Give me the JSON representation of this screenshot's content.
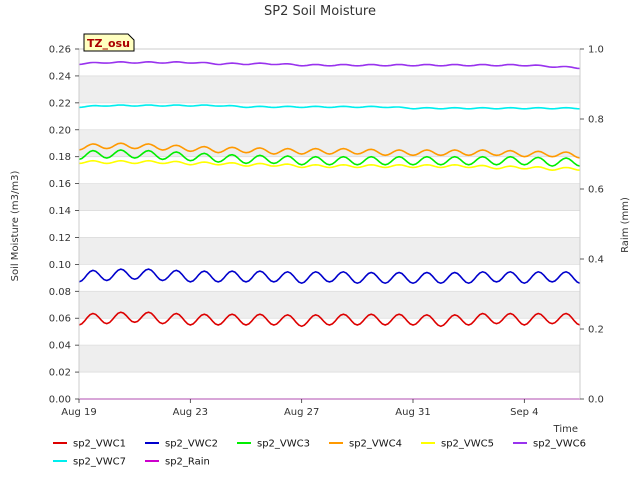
{
  "chart_data": {
    "type": "line",
    "title": "SP2 Soil Moisture",
    "xlabel": "Time",
    "ylabel": "Soil Moisture (m3/m3)",
    "y2label": "Raim (mm)",
    "badge": "TZ_osu",
    "xlim": [
      "2023-08-19",
      "2023-09-06"
    ],
    "ylim": [
      0,
      0.26
    ],
    "y2lim": [
      0,
      1.0
    ],
    "x_ticks": [
      "Aug 19",
      "Aug 23",
      "Aug 27",
      "Aug 31",
      "Sep 4"
    ],
    "x_tick_days": [
      0,
      4,
      8,
      12,
      16
    ],
    "y_ticks": [
      "0.00",
      "0.02",
      "0.04",
      "0.06",
      "0.08",
      "0.10",
      "0.12",
      "0.14",
      "0.16",
      "0.18",
      "0.20",
      "0.22",
      "0.24",
      "0.26"
    ],
    "y2_ticks": [
      "0.0",
      "0.2",
      "0.4",
      "0.6",
      "0.8",
      "1.0"
    ],
    "grid": "horizontal bands",
    "legend_position": "bottom",
    "colors": {
      "band": "#eeeeee",
      "badge_bg": "#ffffc0",
      "badge_text": "#aa0000"
    },
    "series": [
      {
        "name": "sp2_VWC1",
        "color": "#dd0000",
        "axis": "left",
        "x": [
          "2023-08-19",
          "2023-08-20",
          "2023-08-21",
          "2023-08-22",
          "2023-08-23",
          "2023-08-24",
          "2023-08-25",
          "2023-08-26",
          "2023-08-27",
          "2023-08-28",
          "2023-08-29",
          "2023-08-30",
          "2023-08-31",
          "2023-09-01",
          "2023-09-02",
          "2023-09-03",
          "2023-09-04",
          "2023-09-05",
          "2023-09-06"
        ],
        "values": [
          0.059,
          0.06,
          0.061,
          0.06,
          0.059,
          0.059,
          0.059,
          0.059,
          0.058,
          0.059,
          0.059,
          0.059,
          0.059,
          0.058,
          0.059,
          0.06,
          0.059,
          0.06,
          0.059
        ],
        "daily_amplitude": 0.004
      },
      {
        "name": "sp2_VWC2",
        "color": "#0000cc",
        "axis": "left",
        "x": [
          "2023-08-19",
          "2023-08-20",
          "2023-08-21",
          "2023-08-22",
          "2023-08-23",
          "2023-08-24",
          "2023-08-25",
          "2023-08-26",
          "2023-08-27",
          "2023-08-28",
          "2023-08-29",
          "2023-08-30",
          "2023-08-31",
          "2023-09-01",
          "2023-09-02",
          "2023-09-03",
          "2023-09-04",
          "2023-09-05",
          "2023-09-06"
        ],
        "values": [
          0.091,
          0.092,
          0.093,
          0.092,
          0.091,
          0.091,
          0.091,
          0.091,
          0.09,
          0.091,
          0.09,
          0.09,
          0.09,
          0.09,
          0.09,
          0.091,
          0.09,
          0.091,
          0.09
        ],
        "daily_amplitude": 0.004
      },
      {
        "name": "sp2_VWC3",
        "color": "#00ee00",
        "axis": "left",
        "x": [
          "2023-08-19",
          "2023-08-20",
          "2023-08-21",
          "2023-08-22",
          "2023-08-23",
          "2023-08-24",
          "2023-08-25",
          "2023-08-26",
          "2023-08-27",
          "2023-08-28",
          "2023-08-29",
          "2023-08-30",
          "2023-08-31",
          "2023-09-01",
          "2023-09-02",
          "2023-09-03",
          "2023-09-04",
          "2023-09-05",
          "2023-09-06"
        ],
        "values": [
          0.181,
          0.182,
          0.182,
          0.181,
          0.18,
          0.179,
          0.178,
          0.178,
          0.177,
          0.177,
          0.177,
          0.177,
          0.177,
          0.177,
          0.177,
          0.177,
          0.177,
          0.176,
          0.176
        ],
        "daily_amplitude": 0.003
      },
      {
        "name": "sp2_VWC4",
        "color": "#ff9900",
        "axis": "left",
        "x": [
          "2023-08-19",
          "2023-08-20",
          "2023-08-21",
          "2023-08-22",
          "2023-08-23",
          "2023-08-24",
          "2023-08-25",
          "2023-08-26",
          "2023-08-27",
          "2023-08-28",
          "2023-08-29",
          "2023-08-30",
          "2023-08-31",
          "2023-09-01",
          "2023-09-02",
          "2023-09-03",
          "2023-09-04",
          "2023-09-05",
          "2023-09-06"
        ],
        "values": [
          0.187,
          0.188,
          0.188,
          0.187,
          0.186,
          0.185,
          0.185,
          0.184,
          0.184,
          0.184,
          0.184,
          0.183,
          0.183,
          0.183,
          0.183,
          0.183,
          0.182,
          0.182,
          0.181
        ],
        "daily_amplitude": 0.002
      },
      {
        "name": "sp2_VWC5",
        "color": "#ffff00",
        "axis": "left",
        "x": [
          "2023-08-19",
          "2023-08-20",
          "2023-08-21",
          "2023-08-22",
          "2023-08-23",
          "2023-08-24",
          "2023-08-25",
          "2023-08-26",
          "2023-08-27",
          "2023-08-28",
          "2023-08-29",
          "2023-08-30",
          "2023-08-31",
          "2023-09-01",
          "2023-09-02",
          "2023-09-03",
          "2023-09-04",
          "2023-09-05",
          "2023-09-06"
        ],
        "values": [
          0.176,
          0.176,
          0.176,
          0.176,
          0.175,
          0.175,
          0.174,
          0.174,
          0.173,
          0.173,
          0.173,
          0.173,
          0.173,
          0.173,
          0.173,
          0.172,
          0.172,
          0.171,
          0.171
        ],
        "daily_amplitude": 0.001
      },
      {
        "name": "sp2_VWC6",
        "color": "#9933ee",
        "axis": "left",
        "x": [
          "2023-08-19",
          "2023-08-20",
          "2023-08-21",
          "2023-08-22",
          "2023-08-23",
          "2023-08-24",
          "2023-08-25",
          "2023-08-26",
          "2023-08-27",
          "2023-08-28",
          "2023-08-29",
          "2023-08-30",
          "2023-08-31",
          "2023-09-01",
          "2023-09-02",
          "2023-09-03",
          "2023-09-04",
          "2023-09-05",
          "2023-09-06"
        ],
        "values": [
          0.249,
          0.25,
          0.25,
          0.25,
          0.25,
          0.249,
          0.249,
          0.249,
          0.248,
          0.248,
          0.248,
          0.248,
          0.248,
          0.248,
          0.248,
          0.248,
          0.248,
          0.247,
          0.246
        ],
        "daily_amplitude": 0.0005
      },
      {
        "name": "sp2_VWC7",
        "color": "#00eeee",
        "axis": "left",
        "x": [
          "2023-08-19",
          "2023-08-20",
          "2023-08-21",
          "2023-08-22",
          "2023-08-23",
          "2023-08-24",
          "2023-08-25",
          "2023-08-26",
          "2023-08-27",
          "2023-08-28",
          "2023-08-29",
          "2023-08-30",
          "2023-08-31",
          "2023-09-01",
          "2023-09-02",
          "2023-09-03",
          "2023-09-04",
          "2023-09-05",
          "2023-09-06"
        ],
        "values": [
          0.217,
          0.218,
          0.218,
          0.218,
          0.218,
          0.218,
          0.217,
          0.217,
          0.217,
          0.217,
          0.217,
          0.217,
          0.216,
          0.216,
          0.216,
          0.216,
          0.216,
          0.216,
          0.216
        ],
        "daily_amplitude": 0.0004
      },
      {
        "name": "sp2_Rain",
        "color": "#cc00cc",
        "axis": "right",
        "x": [
          "2023-08-19",
          "2023-09-06"
        ],
        "values": [
          0.0,
          0.0
        ],
        "daily_amplitude": 0
      }
    ]
  }
}
